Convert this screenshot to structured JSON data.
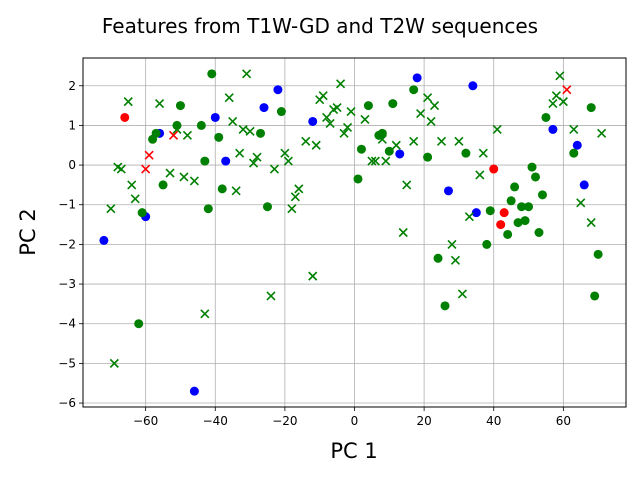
{
  "chart_data": {
    "type": "scatter",
    "title": "Features from T1W-GD and T2W sequences",
    "xlabel": "PC 1",
    "ylabel": "PC 2",
    "xlim": [
      -78,
      78
    ],
    "ylim": [
      -6.1,
      2.7
    ],
    "xticks": [
      -60,
      -40,
      -20,
      0,
      20,
      40,
      60
    ],
    "yticks": [
      -6,
      -5,
      -4,
      -3,
      -2,
      -1,
      0,
      1,
      2
    ],
    "grid": true,
    "series": [
      {
        "color": "#ff0000",
        "marker": "circle",
        "points": [
          [
            -66,
            1.2
          ],
          [
            40,
            -0.1
          ],
          [
            42,
            -1.5
          ],
          [
            43,
            -1.2
          ]
        ]
      },
      {
        "color": "#ff0000",
        "marker": "x",
        "points": [
          [
            -59,
            0.25
          ],
          [
            -60,
            -0.1
          ],
          [
            -52,
            0.75
          ],
          [
            61,
            1.9
          ]
        ]
      },
      {
        "color": "#0000ff",
        "marker": "circle",
        "points": [
          [
            -72,
            -1.9
          ],
          [
            -60,
            -1.3
          ],
          [
            -56,
            0.8
          ],
          [
            -46,
            -5.7
          ],
          [
            -40,
            1.2
          ],
          [
            -37,
            0.1
          ],
          [
            -26,
            1.45
          ],
          [
            -22,
            1.9
          ],
          [
            -12,
            1.1
          ],
          [
            13,
            0.28
          ],
          [
            18,
            2.2
          ],
          [
            27,
            -0.65
          ],
          [
            34,
            2.0
          ],
          [
            35,
            -1.2
          ],
          [
            57,
            0.9
          ],
          [
            64,
            0.5
          ],
          [
            66,
            -0.5
          ]
        ]
      },
      {
        "color": "#008000",
        "marker": "circle",
        "points": [
          [
            -62,
            -4.0
          ],
          [
            -61,
            -1.2
          ],
          [
            -58,
            0.65
          ],
          [
            -57,
            0.8
          ],
          [
            -55,
            -0.5
          ],
          [
            -51,
            1.0
          ],
          [
            -50,
            1.5
          ],
          [
            -44,
            1.0
          ],
          [
            -43,
            0.1
          ],
          [
            -42,
            -1.1
          ],
          [
            -41,
            2.3
          ],
          [
            -39,
            0.7
          ],
          [
            -38,
            -0.6
          ],
          [
            -27,
            0.8
          ],
          [
            -25,
            -1.05
          ],
          [
            -21,
            1.35
          ],
          [
            1,
            -0.35
          ],
          [
            2,
            0.4
          ],
          [
            4,
            1.5
          ],
          [
            7,
            0.75
          ],
          [
            8,
            0.8
          ],
          [
            10,
            0.35
          ],
          [
            11,
            1.55
          ],
          [
            17,
            1.9
          ],
          [
            21,
            0.2
          ],
          [
            24,
            -2.35
          ],
          [
            26,
            -3.55
          ],
          [
            32,
            0.3
          ],
          [
            38,
            -2.0
          ],
          [
            39,
            -1.15
          ],
          [
            44,
            -1.75
          ],
          [
            45,
            -0.9
          ],
          [
            46,
            -0.55
          ],
          [
            47,
            -1.45
          ],
          [
            48,
            -1.05
          ],
          [
            49,
            -1.4
          ],
          [
            50,
            -1.05
          ],
          [
            51,
            -0.05
          ],
          [
            52,
            -0.3
          ],
          [
            53,
            -1.7
          ],
          [
            54,
            -0.75
          ],
          [
            55,
            1.2
          ],
          [
            63,
            0.3
          ],
          [
            68,
            1.45
          ],
          [
            69,
            -3.3
          ],
          [
            70,
            -2.25
          ]
        ]
      },
      {
        "color": "#008000",
        "marker": "x",
        "points": [
          [
            -70,
            -1.1
          ],
          [
            -69,
            -5.0
          ],
          [
            -68,
            -0.05
          ],
          [
            -67,
            -0.1
          ],
          [
            -65,
            1.6
          ],
          [
            -64,
            -0.5
          ],
          [
            -63,
            -0.85
          ],
          [
            -56,
            1.55
          ],
          [
            -53,
            -0.2
          ],
          [
            -51,
            0.9
          ],
          [
            -49,
            -0.3
          ],
          [
            -48,
            0.75
          ],
          [
            -46,
            -0.4
          ],
          [
            -43,
            -3.75
          ],
          [
            -36,
            1.7
          ],
          [
            -35,
            1.1
          ],
          [
            -34,
            -0.65
          ],
          [
            -33,
            0.3
          ],
          [
            -32,
            0.9
          ],
          [
            -31,
            2.3
          ],
          [
            -30,
            0.85
          ],
          [
            -29,
            0.05
          ],
          [
            -28,
            0.2
          ],
          [
            -24,
            -3.3
          ],
          [
            -23,
            -0.1
          ],
          [
            -20,
            0.3
          ],
          [
            -19,
            0.1
          ],
          [
            -18,
            -1.1
          ],
          [
            -17,
            -0.8
          ],
          [
            -16,
            -0.6
          ],
          [
            -14,
            0.6
          ],
          [
            -12,
            -2.8
          ],
          [
            -11,
            0.5
          ],
          [
            -10,
            1.65
          ],
          [
            -9,
            1.75
          ],
          [
            -8,
            1.2
          ],
          [
            -7,
            1.05
          ],
          [
            -6,
            1.4
          ],
          [
            -5,
            1.45
          ],
          [
            -4,
            2.05
          ],
          [
            -3,
            0.8
          ],
          [
            -2,
            0.95
          ],
          [
            -1,
            1.35
          ],
          [
            3,
            1.15
          ],
          [
            5,
            0.1
          ],
          [
            6,
            0.1
          ],
          [
            8,
            0.65
          ],
          [
            9,
            0.1
          ],
          [
            12,
            0.5
          ],
          [
            14,
            -1.7
          ],
          [
            15,
            -0.5
          ],
          [
            17,
            0.6
          ],
          [
            19,
            1.3
          ],
          [
            21,
            1.7
          ],
          [
            22,
            1.1
          ],
          [
            23,
            1.5
          ],
          [
            25,
            0.6
          ],
          [
            28,
            -2.0
          ],
          [
            29,
            -2.4
          ],
          [
            30,
            0.6
          ],
          [
            31,
            -3.25
          ],
          [
            33,
            -1.3
          ],
          [
            36,
            -0.25
          ],
          [
            37,
            0.3
          ],
          [
            41,
            0.9
          ],
          [
            57,
            1.55
          ],
          [
            58,
            1.75
          ],
          [
            59,
            2.25
          ],
          [
            60,
            1.6
          ],
          [
            63,
            0.9
          ],
          [
            65,
            -0.95
          ],
          [
            68,
            -1.45
          ],
          [
            71,
            0.8
          ]
        ]
      }
    ]
  }
}
